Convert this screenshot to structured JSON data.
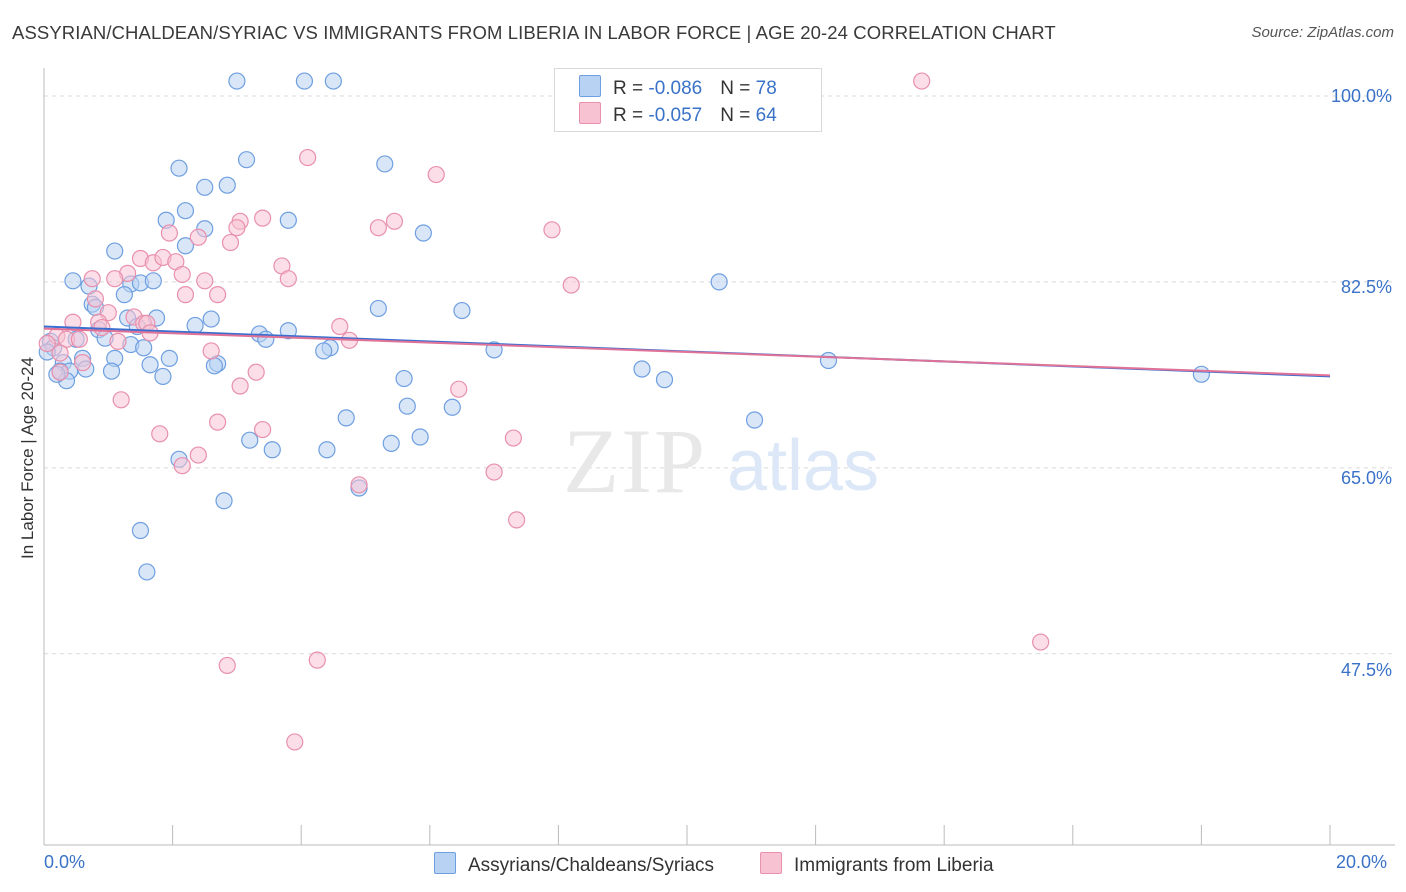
{
  "title": "ASSYRIAN/CHALDEAN/SYRIAC VS IMMIGRANTS FROM LIBERIA IN LABOR FORCE | AGE 20-24 CORRELATION CHART",
  "source": "Source: ZipAtlas.com",
  "watermark": {
    "zip": "ZIP",
    "atlas": "atlas"
  },
  "colors": {
    "blue_fill": "#b8d2f3",
    "blue_stroke": "#6f9fe0",
    "blue_line": "#3a6fd0",
    "pink_fill": "#f7c3d3",
    "pink_stroke": "#e890ad",
    "pink_line": "#e07298",
    "tick_label": "#3a72c8",
    "grid": "#d9d9d9"
  },
  "legend": {
    "rows": [
      {
        "r_label": "R = ",
        "r_value": "-0.086",
        "n_label": "N = ",
        "n_value": "78"
      },
      {
        "r_label": "R = ",
        "r_value": "-0.057",
        "n_label": "N = ",
        "n_value": "64"
      }
    ]
  },
  "chart_data": {
    "type": "scatter",
    "title": "ASSYRIAN/CHALDEAN/SYRIAC VS IMMIGRANTS FROM LIBERIA IN LABOR FORCE | AGE 20-24 CORRELATION CHART",
    "xlabel": "",
    "ylabel": "In Labor Force | Age 20-24",
    "xlim": [
      0,
      20
    ],
    "ylim": [
      29.5,
      101.5
    ],
    "x_tick_labels": [
      "0.0%",
      "20.0%"
    ],
    "y_ticks": [
      100,
      82.5,
      65,
      47.5
    ],
    "y_tick_labels": [
      "100.0%",
      "82.5%",
      "65.0%",
      "47.5%"
    ],
    "grid": "horizontal dashed",
    "legend_position": "top-center",
    "series": [
      {
        "name": "Assyrians/Chaldeans/Syriacs",
        "R": -0.086,
        "N": 78,
        "trend": {
          "x": [
            0,
            20
          ],
          "y": [
            78.3,
            73.6
          ]
        },
        "points": [
          [
            3.0,
            101.4
          ],
          [
            4.05,
            101.4
          ],
          [
            4.5,
            101.4
          ],
          [
            3.15,
            94.0
          ],
          [
            5.3,
            93.6
          ],
          [
            2.1,
            93.2
          ],
          [
            2.5,
            91.4
          ],
          [
            2.85,
            91.6
          ],
          [
            2.2,
            89.2
          ],
          [
            1.9,
            88.3
          ],
          [
            3.8,
            88.3
          ],
          [
            2.5,
            87.5
          ],
          [
            5.9,
            87.1
          ],
          [
            1.1,
            85.4
          ],
          [
            2.2,
            85.9
          ],
          [
            0.45,
            82.6
          ],
          [
            0.7,
            82.1
          ],
          [
            1.35,
            82.3
          ],
          [
            1.5,
            82.4
          ],
          [
            1.7,
            82.6
          ],
          [
            1.25,
            81.3
          ],
          [
            10.5,
            82.5
          ],
          [
            0.75,
            80.4
          ],
          [
            0.8,
            80.1
          ],
          [
            1.3,
            79.1
          ],
          [
            1.75,
            79.1
          ],
          [
            5.2,
            80.0
          ],
          [
            6.5,
            79.8
          ],
          [
            2.6,
            79.0
          ],
          [
            1.45,
            78.3
          ],
          [
            2.35,
            78.4
          ],
          [
            0.85,
            78.0
          ],
          [
            3.35,
            77.6
          ],
          [
            3.8,
            77.9
          ],
          [
            0.5,
            77.1
          ],
          [
            0.95,
            77.2
          ],
          [
            3.45,
            77.1
          ],
          [
            0.1,
            76.9
          ],
          [
            0.15,
            76.3
          ],
          [
            1.35,
            76.6
          ],
          [
            1.55,
            76.3
          ],
          [
            4.45,
            76.3
          ],
          [
            0.05,
            75.9
          ],
          [
            0.6,
            75.3
          ],
          [
            1.1,
            75.3
          ],
          [
            1.95,
            75.3
          ],
          [
            0.3,
            74.9
          ],
          [
            1.65,
            74.7
          ],
          [
            2.7,
            74.8
          ],
          [
            0.25,
            74.1
          ],
          [
            0.4,
            74.1
          ],
          [
            0.65,
            74.3
          ],
          [
            1.05,
            74.1
          ],
          [
            2.65,
            74.6
          ],
          [
            4.35,
            76.0
          ],
          [
            7.0,
            76.1
          ],
          [
            1.85,
            73.6
          ],
          [
            0.35,
            73.2
          ],
          [
            5.6,
            73.4
          ],
          [
            9.3,
            74.3
          ],
          [
            9.65,
            73.3
          ],
          [
            12.2,
            75.1
          ],
          [
            18.0,
            73.8
          ],
          [
            0.2,
            73.8
          ],
          [
            5.65,
            70.8
          ],
          [
            6.35,
            70.7
          ],
          [
            4.7,
            69.7
          ],
          [
            11.05,
            69.5
          ],
          [
            3.2,
            67.6
          ],
          [
            5.4,
            67.3
          ],
          [
            5.85,
            67.9
          ],
          [
            3.55,
            66.7
          ],
          [
            4.4,
            66.7
          ],
          [
            2.1,
            65.8
          ],
          [
            4.9,
            63.1
          ],
          [
            2.8,
            61.9
          ],
          [
            1.5,
            59.1
          ],
          [
            1.6,
            55.2
          ]
        ]
      },
      {
        "name": "Immigrants from Liberia",
        "R": -0.057,
        "N": 64,
        "trend": {
          "x": [
            0,
            20
          ],
          "y": [
            78.1,
            73.7
          ]
        },
        "points": [
          [
            9.45,
            101.4
          ],
          [
            13.65,
            101.4
          ],
          [
            4.1,
            94.2
          ],
          [
            6.1,
            92.6
          ],
          [
            3.4,
            88.5
          ],
          [
            5.45,
            88.2
          ],
          [
            3.05,
            88.2
          ],
          [
            3.0,
            87.6
          ],
          [
            5.2,
            87.6
          ],
          [
            7.9,
            87.4
          ],
          [
            1.95,
            87.1
          ],
          [
            2.4,
            86.7
          ],
          [
            2.9,
            86.2
          ],
          [
            1.5,
            84.7
          ],
          [
            1.7,
            84.3
          ],
          [
            1.85,
            84.8
          ],
          [
            2.05,
            84.4
          ],
          [
            1.3,
            83.3
          ],
          [
            2.15,
            83.2
          ],
          [
            3.7,
            84.0
          ],
          [
            1.1,
            82.8
          ],
          [
            3.8,
            82.8
          ],
          [
            2.5,
            82.6
          ],
          [
            0.75,
            82.8
          ],
          [
            8.2,
            82.2
          ],
          [
            2.2,
            81.3
          ],
          [
            2.7,
            81.3
          ],
          [
            0.8,
            80.9
          ],
          [
            1.0,
            79.6
          ],
          [
            1.4,
            79.2
          ],
          [
            1.55,
            78.6
          ],
          [
            1.6,
            78.6
          ],
          [
            0.85,
            78.7
          ],
          [
            0.45,
            78.7
          ],
          [
            0.9,
            78.2
          ],
          [
            4.6,
            78.3
          ],
          [
            1.65,
            77.7
          ],
          [
            0.2,
            77.4
          ],
          [
            0.35,
            77.1
          ],
          [
            0.55,
            77.1
          ],
          [
            4.75,
            77.0
          ],
          [
            0.05,
            76.7
          ],
          [
            1.15,
            76.9
          ],
          [
            2.6,
            76.0
          ],
          [
            0.25,
            75.8
          ],
          [
            0.6,
            74.9
          ],
          [
            3.3,
            74.0
          ],
          [
            3.05,
            72.7
          ],
          [
            6.45,
            72.4
          ],
          [
            1.2,
            71.4
          ],
          [
            2.7,
            69.3
          ],
          [
            3.4,
            68.6
          ],
          [
            1.8,
            68.2
          ],
          [
            7.3,
            67.8
          ],
          [
            2.4,
            66.2
          ],
          [
            2.15,
            65.2
          ],
          [
            7.0,
            64.6
          ],
          [
            4.9,
            63.4
          ],
          [
            7.35,
            60.1
          ],
          [
            15.5,
            48.6
          ],
          [
            2.85,
            46.4
          ],
          [
            4.25,
            46.9
          ],
          [
            3.9,
            39.2
          ],
          [
            0.25,
            74.0
          ]
        ]
      }
    ]
  }
}
